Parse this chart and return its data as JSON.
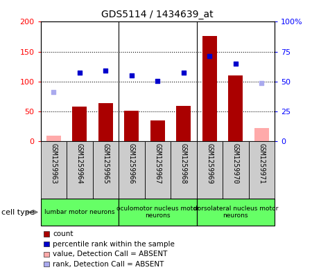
{
  "title": "GDS5114 / 1434639_at",
  "samples": [
    "GSM1259963",
    "GSM1259964",
    "GSM1259965",
    "GSM1259966",
    "GSM1259967",
    "GSM1259968",
    "GSM1259969",
    "GSM1259970",
    "GSM1259971"
  ],
  "bar_values": [
    10,
    58,
    64,
    51,
    35,
    59,
    176,
    110,
    22
  ],
  "bar_absent": [
    true,
    false,
    false,
    false,
    false,
    false,
    false,
    false,
    true
  ],
  "rank_values": [
    82,
    115,
    118,
    110,
    101,
    115,
    143,
    130,
    97
  ],
  "rank_absent": [
    true,
    false,
    false,
    false,
    false,
    false,
    false,
    false,
    true
  ],
  "bar_color_present": "#aa0000",
  "bar_color_absent": "#ffaaaa",
  "rank_color_present": "#0000cc",
  "rank_color_absent": "#aaaaee",
  "ylim_left": [
    0,
    200
  ],
  "ylim_right": [
    0,
    100
  ],
  "yticks_left": [
    0,
    50,
    100,
    150,
    200
  ],
  "yticks_right": [
    0,
    25,
    50,
    75,
    100
  ],
  "ytick_labels_right": [
    "0",
    "25",
    "50",
    "75",
    "100%"
  ],
  "cell_groups": [
    {
      "label": "lumbar motor neurons",
      "start": 0,
      "end": 3
    },
    {
      "label": "oculomotor nucleus motor\nneurons",
      "start": 3,
      "end": 6
    },
    {
      "label": "dorsolateral nucleus motor\nneurons",
      "start": 6,
      "end": 9
    }
  ],
  "cell_group_color": "#66ff66",
  "sample_box_color": "#cccccc",
  "legend_items": [
    {
      "color": "#aa0000",
      "label": "count"
    },
    {
      "color": "#0000cc",
      "label": "percentile rank within the sample"
    },
    {
      "color": "#ffaaaa",
      "label": "value, Detection Call = ABSENT"
    },
    {
      "color": "#aaaaee",
      "label": "rank, Detection Call = ABSENT"
    }
  ],
  "bar_width": 0.55,
  "group_boundaries": [
    3,
    6
  ]
}
